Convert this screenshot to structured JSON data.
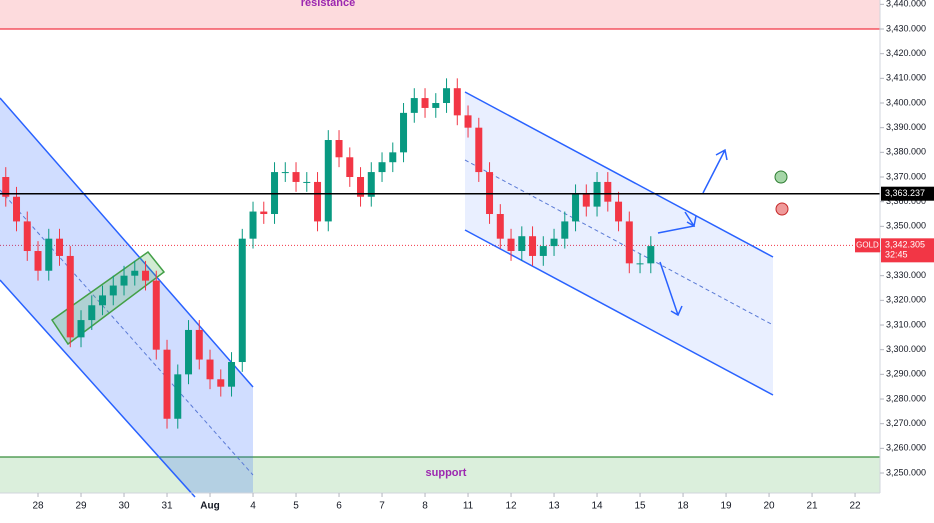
{
  "chart_data": {
    "type": "candlestick",
    "symbol": "GOLD",
    "countdown": "32:45",
    "x": [
      -0.75,
      -0.5,
      -0.25,
      0,
      0.25,
      0.5,
      0.75,
      1,
      1.25,
      1.5,
      1.75,
      2,
      2.25,
      2.5,
      2.75,
      3,
      3.25,
      3.5,
      3.75,
      4,
      4.25,
      4.5,
      4.75,
      5,
      5.25,
      5.5,
      5.75,
      6,
      6.25,
      6.5,
      6.75,
      7,
      7.25,
      7.5,
      7.75,
      8,
      8.25,
      8.5,
      8.75,
      9,
      9.25,
      9.5,
      9.75,
      10,
      10.25,
      10.5,
      10.75,
      11,
      11.25,
      11.5,
      11.75,
      12,
      12.25,
      12.5,
      12.75,
      13,
      13.25,
      13.5,
      13.75,
      14,
      14.25
    ],
    "open": [
      3370,
      3362,
      3352,
      3340,
      3332,
      3345,
      3338,
      3305,
      3312,
      3318,
      3322,
      3326,
      3330,
      3332,
      3328,
      3300,
      3272,
      3290,
      3308,
      3296,
      3288,
      3285,
      3295,
      3345,
      3356,
      3355,
      3372,
      3372,
      3368,
      3368,
      3352,
      3385,
      3378,
      3370,
      3362,
      3372,
      3376,
      3380,
      3396,
      3402,
      3398,
      3400,
      3406,
      3395,
      3390,
      3372,
      3355,
      3345,
      3340,
      3346,
      3338,
      3342,
      3345,
      3352,
      3363,
      3358,
      3368,
      3360,
      3352,
      3335,
      3335
    ],
    "high": [
      3374,
      3366,
      3356,
      3344,
      3349,
      3349,
      3342,
      3316,
      3322,
      3326,
      3330,
      3334,
      3336,
      3336,
      3332,
      3304,
      3294,
      3312,
      3312,
      3300,
      3292,
      3299,
      3349,
      3360,
      3360,
      3376,
      3376,
      3376,
      3372,
      3372,
      3389,
      3389,
      3382,
      3374,
      3376,
      3380,
      3384,
      3400,
      3406,
      3406,
      3404,
      3410,
      3410,
      3399,
      3394,
      3376,
      3359,
      3349,
      3350,
      3350,
      3346,
      3349,
      3356,
      3367,
      3367,
      3372,
      3372,
      3364,
      3356,
      3339,
      3346
    ],
    "low": [
      3358,
      3348,
      3336,
      3328,
      3328,
      3334,
      3301,
      3301,
      3308,
      3314,
      3318,
      3322,
      3326,
      3324,
      3296,
      3268,
      3268,
      3286,
      3292,
      3284,
      3281,
      3281,
      3291,
      3341,
      3351,
      3351,
      3368,
      3364,
      3364,
      3348,
      3348,
      3374,
      3366,
      3358,
      3358,
      3368,
      3372,
      3376,
      3392,
      3394,
      3394,
      3396,
      3391,
      3386,
      3368,
      3351,
      3341,
      3336,
      3336,
      3334,
      3334,
      3338,
      3341,
      3348,
      3354,
      3354,
      3356,
      3348,
      3331,
      3331,
      3331
    ],
    "close": [
      3362,
      3352,
      3340,
      3332,
      3345,
      3338,
      3305,
      3312,
      3318,
      3322,
      3326,
      3330,
      3332,
      3328,
      3300,
      3272,
      3290,
      3308,
      3296,
      3288,
      3285,
      3295,
      3345,
      3356,
      3355,
      3372,
      3372,
      3368,
      3368,
      3352,
      3385,
      3378,
      3370,
      3362,
      3372,
      3376,
      3380,
      3396,
      3402,
      3398,
      3400,
      3406,
      3395,
      3390,
      3372,
      3355,
      3345,
      3340,
      3346,
      3338,
      3342,
      3345,
      3352,
      3363,
      3358,
      3368,
      3360,
      3352,
      3335,
      3335,
      3342
    ],
    "up_color": "#089981",
    "down_color": "#f23645",
    "xlim": [
      -0.884,
      19.58
    ],
    "xticks": [
      {
        "value": 0,
        "label": "28"
      },
      {
        "value": 1,
        "label": "29"
      },
      {
        "value": 2,
        "label": "30"
      },
      {
        "value": 3,
        "label": "31"
      },
      {
        "value": 4,
        "label": "Aug"
      },
      {
        "value": 5,
        "label": "4"
      },
      {
        "value": 6,
        "label": "5"
      },
      {
        "value": 7,
        "label": "6"
      },
      {
        "value": 8,
        "label": "7"
      },
      {
        "value": 9,
        "label": "8"
      },
      {
        "value": 10,
        "label": "11"
      },
      {
        "value": 11,
        "label": "12"
      },
      {
        "value": 12,
        "label": "13"
      },
      {
        "value": 13,
        "label": "14"
      },
      {
        "value": 14,
        "label": "15"
      },
      {
        "value": 15,
        "label": "18"
      },
      {
        "value": 16,
        "label": "19"
      },
      {
        "value": 17,
        "label": "20"
      },
      {
        "value": 18,
        "label": "21"
      },
      {
        "value": 19,
        "label": "22"
      }
    ],
    "ylim": [
      3241.9,
      3441.76
    ],
    "yticks": [
      {
        "value": 3250,
        "label": "3,250.000"
      },
      {
        "value": 3260,
        "label": "3,260.000"
      },
      {
        "value": 3270,
        "label": "3,270.000"
      },
      {
        "value": 3280,
        "label": "3,280.000"
      },
      {
        "value": 3290,
        "label": "3,290.000"
      },
      {
        "value": 3300,
        "label": "3,300.000"
      },
      {
        "value": 3310,
        "label": "3,310.000"
      },
      {
        "value": 3320,
        "label": "3,320.000"
      },
      {
        "value": 3330,
        "label": "3,330.000"
      },
      {
        "value": 3340,
        "label": "3,340.000"
      },
      {
        "value": 3350,
        "label": "3,350.000"
      },
      {
        "value": 3360,
        "label": "3,360.000"
      },
      {
        "value": 3370,
        "label": "3,370.000"
      },
      {
        "value": 3380,
        "label": "3,380.000"
      },
      {
        "value": 3390,
        "label": "3,390.000"
      },
      {
        "value": 3400,
        "label": "3,400.000"
      },
      {
        "value": 3410,
        "label": "3,410.000"
      },
      {
        "value": 3420,
        "label": "3,420.000"
      },
      {
        "value": 3430,
        "label": "3,430.000"
      },
      {
        "value": 3440,
        "label": "3,440.000"
      }
    ],
    "grid": false,
    "resistance": {
      "label": "resistance",
      "range": [
        3430,
        3441.76
      ]
    },
    "support": {
      "label": "support",
      "range": [
        3242,
        3256.5
      ]
    },
    "level": {
      "value": 3363.237,
      "label": "3,363.237"
    },
    "last_price": {
      "value": 3342.305,
      "label": "3,342.305"
    }
  }
}
